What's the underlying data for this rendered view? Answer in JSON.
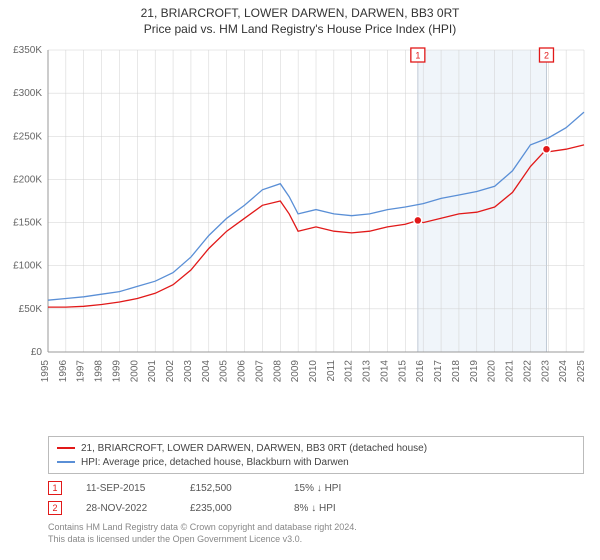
{
  "title": "21, BRIARCROFT, LOWER DARWEN, DARWEN, BB3 0RT",
  "subtitle": "Price paid vs. HM Land Registry's House Price Index (HPI)",
  "chart": {
    "type": "line",
    "background_color": "#ffffff",
    "grid_color": "#d0d0d0",
    "axis_color": "#999999",
    "y": {
      "min": 0,
      "max": 350000,
      "step": 50000,
      "format_prefix": "£",
      "format_suffix": "K",
      "divisor": 1000
    },
    "x": {
      "years": [
        1995,
        1996,
        1997,
        1998,
        1999,
        2000,
        2001,
        2002,
        2003,
        2004,
        2005,
        2006,
        2007,
        2008,
        2009,
        2010,
        2011,
        2012,
        2013,
        2014,
        2015,
        2016,
        2017,
        2018,
        2019,
        2020,
        2021,
        2022,
        2023,
        2024,
        2025
      ]
    },
    "highlight_band": {
      "from_year": 2015.7,
      "to_year": 2022.9,
      "color": "#e6eef7"
    },
    "highlight_band_borders": {
      "left_color": "#cfd8e3",
      "right_color": "#cfd8e3"
    },
    "series": [
      {
        "name": "property",
        "label": "21, BRIARCROFT, LOWER DARWEN, DARWEN, BB3 0RT (detached house)",
        "color": "#e11919",
        "width": 1.3,
        "points": [
          [
            1995,
            52000
          ],
          [
            1996,
            52000
          ],
          [
            1997,
            53000
          ],
          [
            1998,
            55000
          ],
          [
            1999,
            58000
          ],
          [
            2000,
            62000
          ],
          [
            2001,
            68000
          ],
          [
            2002,
            78000
          ],
          [
            2003,
            95000
          ],
          [
            2004,
            120000
          ],
          [
            2005,
            140000
          ],
          [
            2006,
            155000
          ],
          [
            2007,
            170000
          ],
          [
            2008,
            175000
          ],
          [
            2008.5,
            160000
          ],
          [
            2009,
            140000
          ],
          [
            2010,
            145000
          ],
          [
            2011,
            140000
          ],
          [
            2012,
            138000
          ],
          [
            2013,
            140000
          ],
          [
            2014,
            145000
          ],
          [
            2015,
            148000
          ],
          [
            2015.7,
            152500
          ],
          [
            2016,
            150000
          ],
          [
            2017,
            155000
          ],
          [
            2018,
            160000
          ],
          [
            2019,
            162000
          ],
          [
            2020,
            168000
          ],
          [
            2021,
            185000
          ],
          [
            2022,
            215000
          ],
          [
            2022.9,
            235000
          ],
          [
            2023,
            232000
          ],
          [
            2024,
            235000
          ],
          [
            2025,
            240000
          ]
        ]
      },
      {
        "name": "hpi",
        "label": "HPI: Average price, detached house, Blackburn with Darwen",
        "color": "#5a8fd6",
        "width": 1.3,
        "points": [
          [
            1995,
            60000
          ],
          [
            1996,
            62000
          ],
          [
            1997,
            64000
          ],
          [
            1998,
            67000
          ],
          [
            1999,
            70000
          ],
          [
            2000,
            76000
          ],
          [
            2001,
            82000
          ],
          [
            2002,
            92000
          ],
          [
            2003,
            110000
          ],
          [
            2004,
            135000
          ],
          [
            2005,
            155000
          ],
          [
            2006,
            170000
          ],
          [
            2007,
            188000
          ],
          [
            2008,
            195000
          ],
          [
            2008.5,
            180000
          ],
          [
            2009,
            160000
          ],
          [
            2010,
            165000
          ],
          [
            2011,
            160000
          ],
          [
            2012,
            158000
          ],
          [
            2013,
            160000
          ],
          [
            2014,
            165000
          ],
          [
            2015,
            168000
          ],
          [
            2016,
            172000
          ],
          [
            2017,
            178000
          ],
          [
            2018,
            182000
          ],
          [
            2019,
            186000
          ],
          [
            2020,
            192000
          ],
          [
            2021,
            210000
          ],
          [
            2022,
            240000
          ],
          [
            2023,
            248000
          ],
          [
            2024,
            260000
          ],
          [
            2025,
            278000
          ]
        ]
      }
    ],
    "markers": [
      {
        "id": "1",
        "year": 2015.7,
        "top": true,
        "color": "#e11919",
        "point_value": 152500
      },
      {
        "id": "2",
        "year": 2022.9,
        "top": true,
        "color": "#e11919",
        "point_value": 235000
      }
    ]
  },
  "legend": {
    "border_color": "#bbbbbb",
    "items": [
      {
        "label_path": "chart.series.0.label",
        "color_path": "chart.series.0.color"
      },
      {
        "label_path": "chart.series.1.label",
        "color_path": "chart.series.1.color"
      }
    ]
  },
  "data_rows": [
    {
      "marker": "1",
      "marker_color": "#e11919",
      "date": "11-SEP-2015",
      "price": "£152,500",
      "diff": "15% ↓ HPI"
    },
    {
      "marker": "2",
      "marker_color": "#e11919",
      "date": "28-NOV-2022",
      "price": "£235,000",
      "diff": "8% ↓ HPI"
    }
  ],
  "footer": {
    "line1": "Contains HM Land Registry data © Crown copyright and database right 2024.",
    "line2": "This data is licensed under the Open Government Licence v3.0."
  }
}
